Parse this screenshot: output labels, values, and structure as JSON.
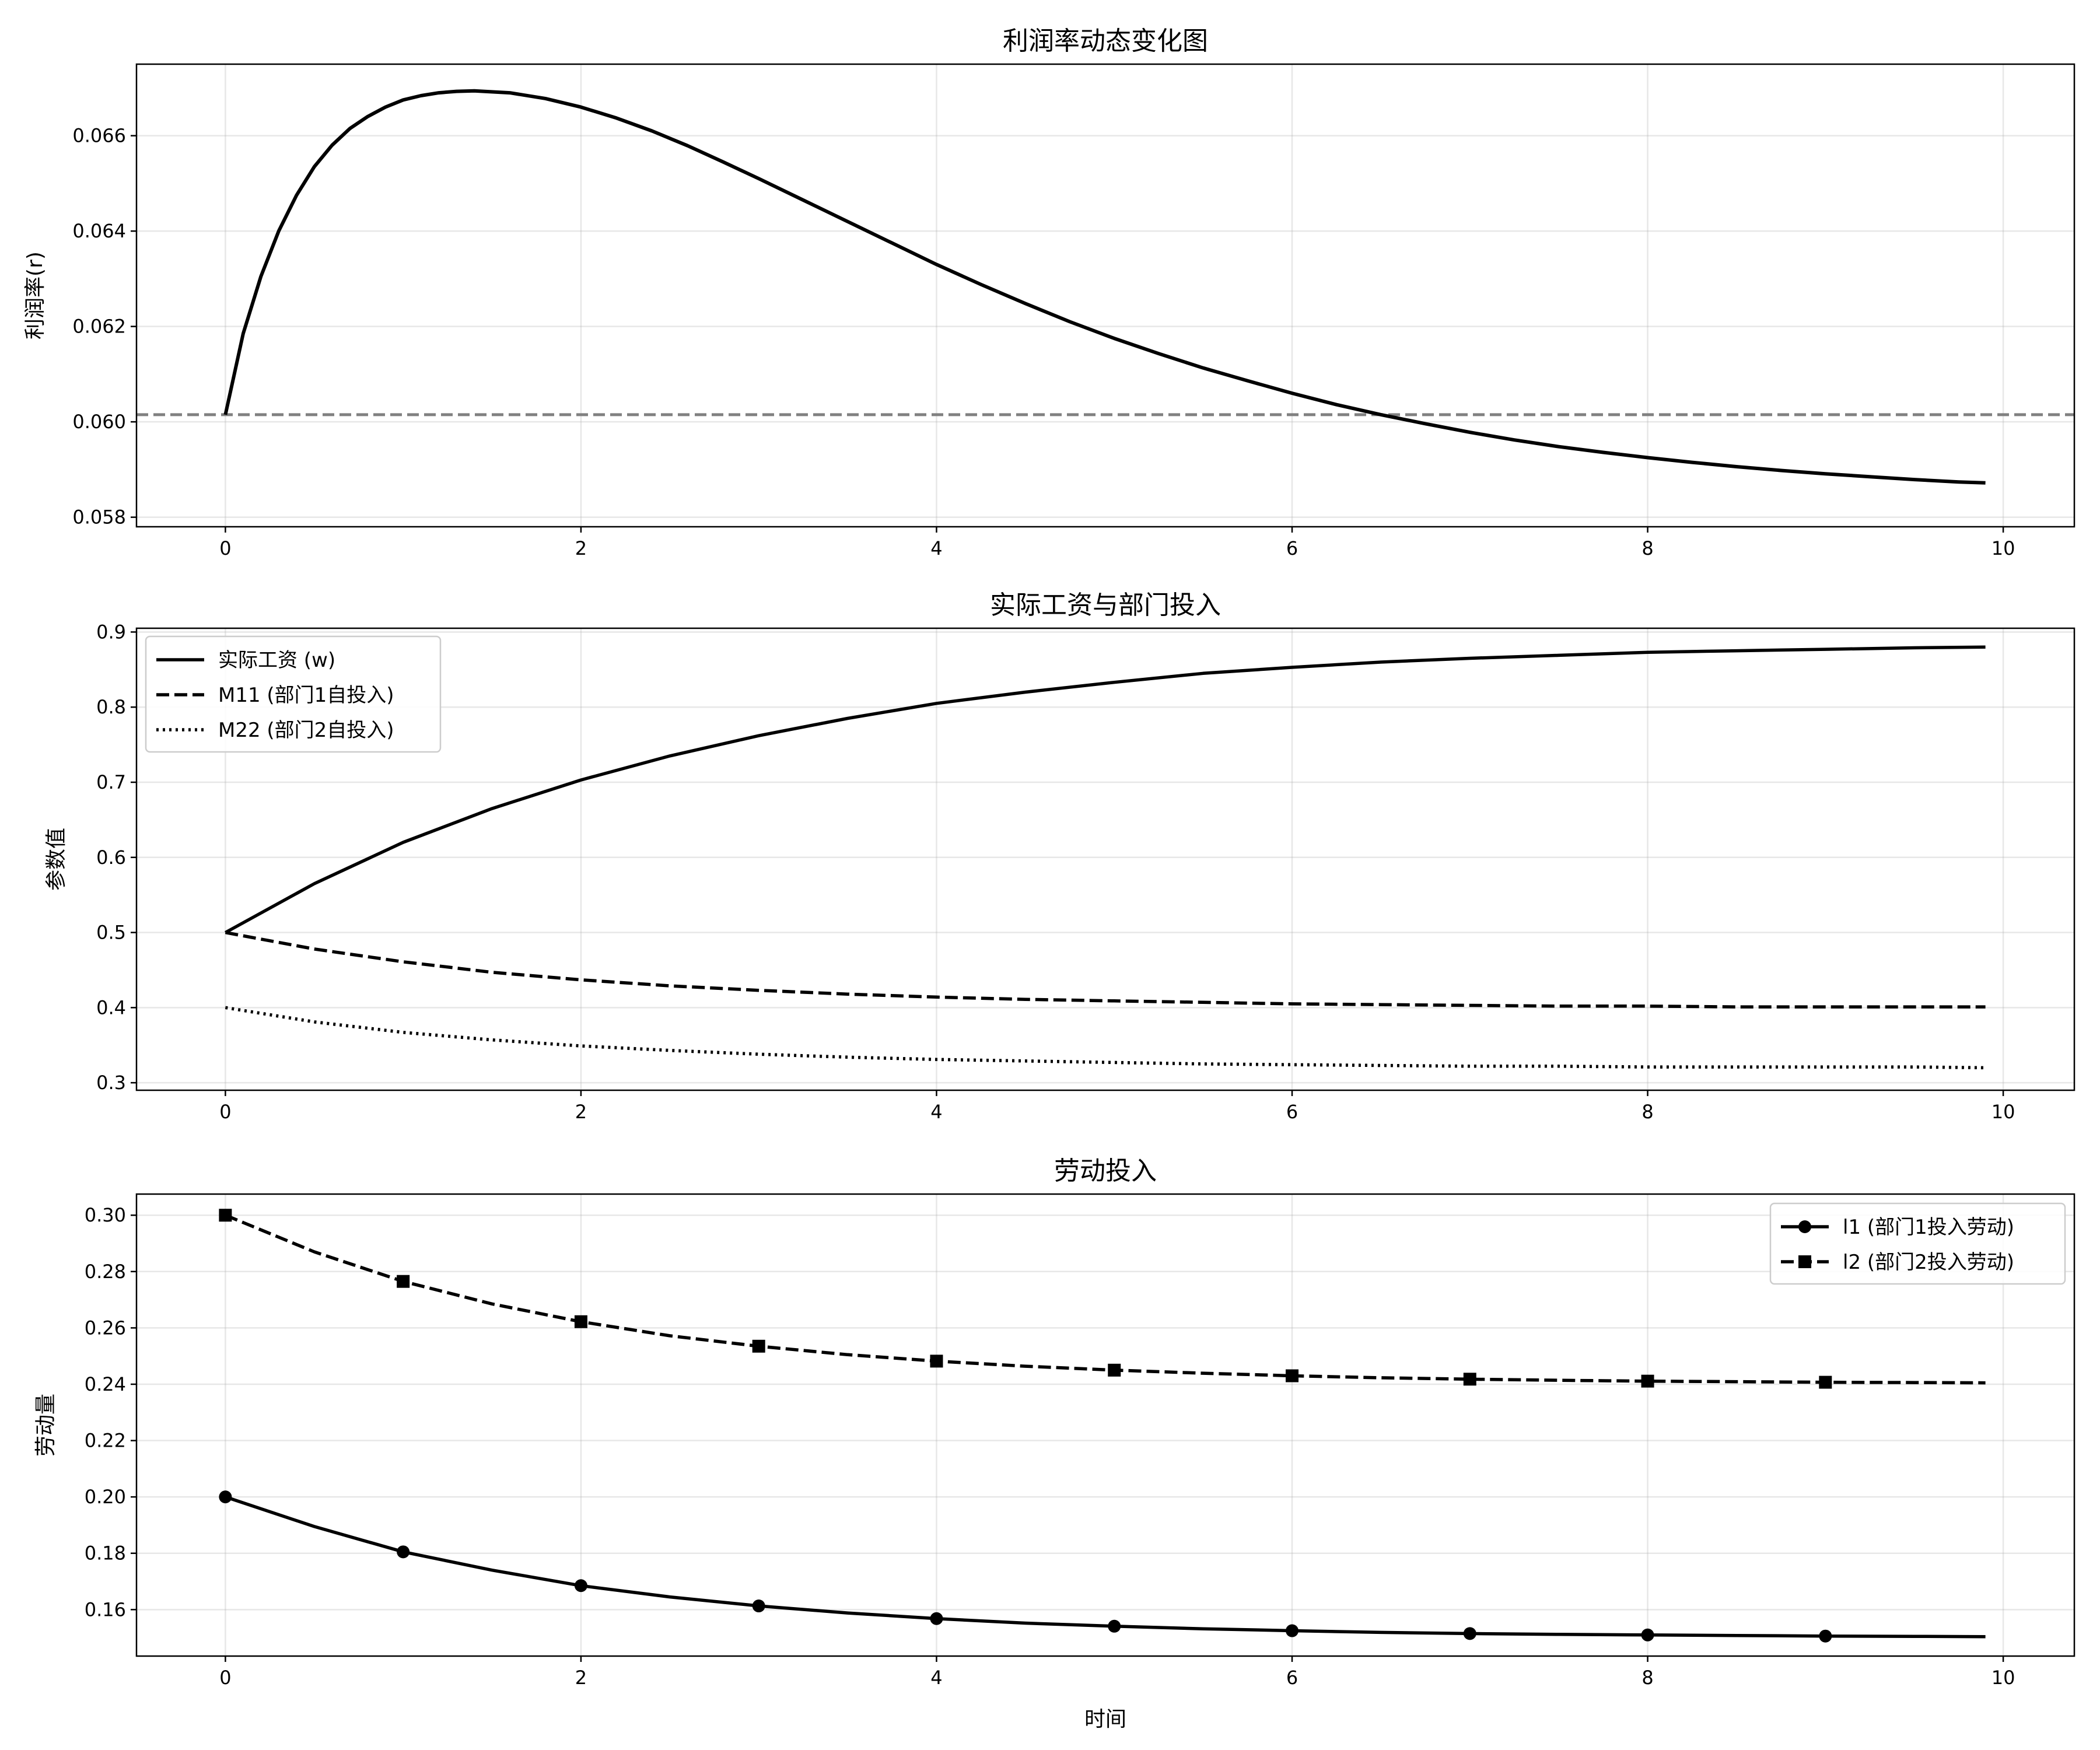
{
  "chart_data": [
    {
      "type": "line",
      "title": "利润率动态变化图",
      "xlabel": "",
      "ylabel": "利润率(r)",
      "xlim": [
        -0.5,
        10.4
      ],
      "ylim": [
        0.0578,
        0.0675
      ],
      "xticks": [
        0,
        2,
        4,
        6,
        8,
        10
      ],
      "xtick_labels": [
        "0",
        "2",
        "4",
        "6",
        "8",
        "10"
      ],
      "yticks": [
        0.058,
        0.06,
        0.062,
        0.064,
        0.066
      ],
      "ytick_labels": [
        "0.058",
        "0.060",
        "0.062",
        "0.064",
        "0.066"
      ],
      "grid": true,
      "reference_line": {
        "y": 0.06015,
        "color": "#808080",
        "style": "dashed"
      },
      "series": [
        {
          "name": "",
          "color": "#000000",
          "style": "solid",
          "x": [
            0,
            0.1,
            0.2,
            0.3,
            0.4,
            0.5,
            0.6,
            0.7,
            0.8,
            0.9,
            1.0,
            1.1,
            1.2,
            1.3,
            1.4,
            1.6,
            1.8,
            2.0,
            2.2,
            2.4,
            2.6,
            2.8,
            3.0,
            3.25,
            3.5,
            3.75,
            4.0,
            4.25,
            4.5,
            4.75,
            5.0,
            5.25,
            5.5,
            5.75,
            6.0,
            6.25,
            6.5,
            6.75,
            7.0,
            7.25,
            7.5,
            7.75,
            8.0,
            8.25,
            8.5,
            8.75,
            9.0,
            9.25,
            9.5,
            9.75,
            9.9
          ],
          "y": [
            0.06015,
            0.06185,
            0.06305,
            0.064,
            0.06475,
            0.06535,
            0.0658,
            0.06615,
            0.0664,
            0.0666,
            0.06675,
            0.06684,
            0.0669,
            0.06693,
            0.06694,
            0.0669,
            0.06678,
            0.0666,
            0.06637,
            0.0661,
            0.06579,
            0.06545,
            0.0651,
            0.06465,
            0.0642,
            0.06375,
            0.0633,
            0.06288,
            0.06248,
            0.0621,
            0.06175,
            0.06143,
            0.06113,
            0.06086,
            0.0606,
            0.06036,
            0.06015,
            0.05996,
            0.05978,
            0.05962,
            0.05948,
            0.05936,
            0.05925,
            0.05915,
            0.05906,
            0.05898,
            0.05891,
            0.05885,
            0.05879,
            0.05874,
            0.05872
          ]
        }
      ]
    },
    {
      "type": "line",
      "title": "实际工资与部门投入",
      "xlabel": "",
      "ylabel": "参数值",
      "xlim": [
        -0.5,
        10.4
      ],
      "ylim": [
        0.29,
        0.905
      ],
      "xticks": [
        0,
        2,
        4,
        6,
        8,
        10
      ],
      "xtick_labels": [
        "0",
        "2",
        "4",
        "6",
        "8",
        "10"
      ],
      "yticks": [
        0.3,
        0.4,
        0.5,
        0.6,
        0.7,
        0.8,
        0.9
      ],
      "ytick_labels": [
        "0.3",
        "0.4",
        "0.5",
        "0.6",
        "0.7",
        "0.8",
        "0.9"
      ],
      "grid": true,
      "legend": "top-left",
      "series": [
        {
          "name": "实际工资 (w)",
          "color": "#000000",
          "style": "solid",
          "x": [
            0,
            0.5,
            1,
            1.5,
            2,
            2.5,
            3,
            3.5,
            4,
            4.5,
            5,
            5.5,
            6,
            6.5,
            7,
            7.5,
            8,
            8.5,
            9,
            9.5,
            9.9
          ],
          "y": [
            0.5,
            0.565,
            0.62,
            0.665,
            0.703,
            0.735,
            0.762,
            0.785,
            0.805,
            0.82,
            0.833,
            0.845,
            0.853,
            0.86,
            0.865,
            0.869,
            0.873,
            0.875,
            0.877,
            0.879,
            0.88
          ]
        },
        {
          "name": "M11 (部门1自投入)",
          "color": "#000000",
          "style": "dashed",
          "x": [
            0,
            0.5,
            1,
            1.5,
            2,
            2.5,
            3,
            3.5,
            4,
            4.5,
            5,
            5.5,
            6,
            6.5,
            7,
            7.5,
            8,
            8.5,
            9,
            9.5,
            9.9
          ],
          "y": [
            0.5,
            0.478,
            0.461,
            0.447,
            0.437,
            0.429,
            0.423,
            0.418,
            0.414,
            0.411,
            0.409,
            0.407,
            0.405,
            0.404,
            0.403,
            0.402,
            0.402,
            0.401,
            0.401,
            0.401,
            0.401
          ]
        },
        {
          "name": "M22 (部门2自投入)",
          "color": "#000000",
          "style": "dotted",
          "x": [
            0,
            0.5,
            1,
            1.5,
            2,
            2.5,
            3,
            3.5,
            4,
            4.5,
            5,
            5.5,
            6,
            6.5,
            7,
            7.5,
            8,
            8.5,
            9,
            9.5,
            9.9
          ],
          "y": [
            0.4,
            0.381,
            0.367,
            0.357,
            0.349,
            0.343,
            0.338,
            0.334,
            0.331,
            0.329,
            0.327,
            0.325,
            0.324,
            0.323,
            0.322,
            0.322,
            0.321,
            0.321,
            0.321,
            0.321,
            0.32
          ]
        }
      ]
    },
    {
      "type": "line",
      "title": "劳动投入",
      "xlabel": "时间",
      "ylabel": "劳动量",
      "xlim": [
        -0.5,
        10.4
      ],
      "ylim": [
        0.1435,
        0.3075
      ],
      "xticks": [
        0,
        2,
        4,
        6,
        8,
        10
      ],
      "xtick_labels": [
        "0",
        "2",
        "4",
        "6",
        "8",
        "10"
      ],
      "yticks": [
        0.16,
        0.18,
        0.2,
        0.22,
        0.24,
        0.26,
        0.28,
        0.3
      ],
      "ytick_labels": [
        "0.16",
        "0.18",
        "0.20",
        "0.22",
        "0.24",
        "0.26",
        "0.28",
        "0.30"
      ],
      "grid": true,
      "legend": "top-right",
      "series": [
        {
          "name": "l1 (部门1投入劳动)",
          "color": "#000000",
          "style": "solid",
          "marker": "circle",
          "x": [
            0,
            0.5,
            1,
            1.5,
            2,
            2.5,
            3,
            3.5,
            4,
            4.5,
            5,
            5.5,
            6,
            6.5,
            7,
            7.5,
            8,
            8.5,
            9,
            9.5,
            9.9
          ],
          "y": [
            0.2,
            0.1895,
            0.1805,
            0.174,
            0.1685,
            0.1645,
            0.1613,
            0.1588,
            0.1568,
            0.1552,
            0.1541,
            0.1532,
            0.1525,
            0.1519,
            0.1515,
            0.1512,
            0.151,
            0.1508,
            0.1506,
            0.1505,
            0.1504
          ],
          "marker_x": [
            0,
            1,
            2,
            3,
            4,
            5,
            6,
            7,
            8,
            9
          ],
          "marker_y": [
            0.2,
            0.1805,
            0.1685,
            0.1613,
            0.1568,
            0.1541,
            0.1525,
            0.1515,
            0.151,
            0.1506
          ]
        },
        {
          "name": "l2 (部门2投入劳动)",
          "color": "#000000",
          "style": "dashed",
          "marker": "square",
          "x": [
            0,
            0.5,
            1,
            1.5,
            2,
            2.5,
            3,
            3.5,
            4,
            4.5,
            5,
            5.5,
            6,
            6.5,
            7,
            7.5,
            8,
            8.5,
            9,
            9.5,
            9.9
          ],
          "y": [
            0.3,
            0.287,
            0.2765,
            0.2685,
            0.2622,
            0.2572,
            0.2535,
            0.2505,
            0.2482,
            0.2464,
            0.245,
            0.2439,
            0.243,
            0.2423,
            0.2418,
            0.2414,
            0.2411,
            0.2409,
            0.2407,
            0.2406,
            0.2405
          ],
          "marker_x": [
            0,
            1,
            2,
            3,
            4,
            5,
            6,
            7,
            8,
            9
          ],
          "marker_y": [
            0.3,
            0.2765,
            0.2622,
            0.2535,
            0.2482,
            0.245,
            0.243,
            0.2418,
            0.2411,
            0.2407
          ]
        }
      ]
    }
  ]
}
